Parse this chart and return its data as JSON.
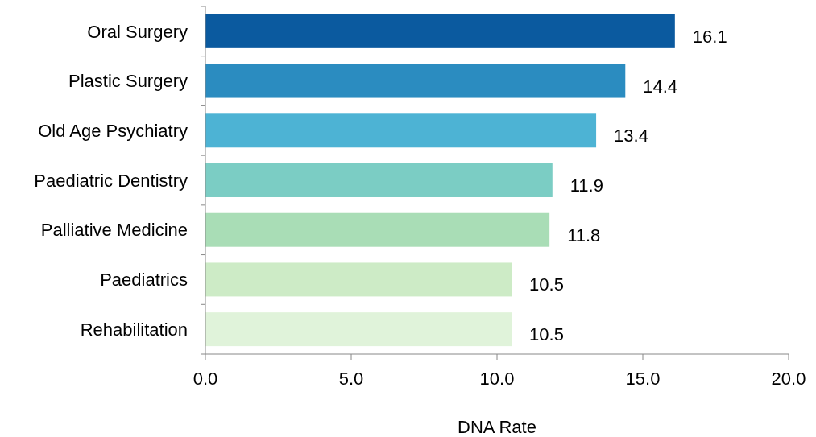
{
  "chart_data": {
    "type": "bar",
    "orientation": "horizontal",
    "xlabel": "DNA Rate",
    "categories": [
      "Oral Surgery",
      "Plastic Surgery",
      "Old Age Psychiatry",
      "Paediatric Dentistry",
      "Palliative Medicine",
      "Paediatrics",
      "Rehabilitation"
    ],
    "values": [
      16.1,
      14.4,
      13.4,
      11.9,
      11.8,
      10.5,
      10.5
    ],
    "colors": [
      "#0b5a9f",
      "#2b8cc0",
      "#4db3d4",
      "#7bcdc4",
      "#a9ddb6",
      "#cdebc6",
      "#e0f3da"
    ],
    "xlim": [
      0,
      20
    ],
    "xticks": [
      {
        "value": 0,
        "label": "0.0"
      },
      {
        "value": 5,
        "label": "5.0"
      },
      {
        "value": 10,
        "label": "10.0"
      },
      {
        "value": 15,
        "label": "15.0"
      },
      {
        "value": 20,
        "label": "20.0"
      }
    ],
    "data_labels": true,
    "grid": false
  }
}
